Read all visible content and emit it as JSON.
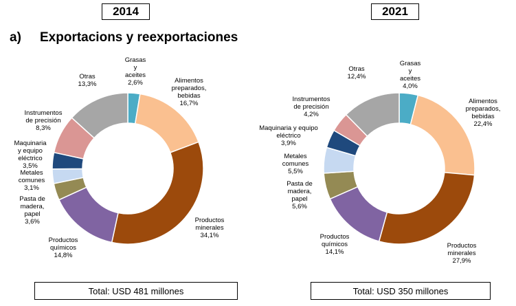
{
  "section_letter": "a)",
  "section_title": "Exportacions y reexportaciones",
  "chart_data": [
    {
      "type": "pie",
      "donut": true,
      "year": "2014",
      "total": "Total: USD 481 millones",
      "slices": [
        {
          "label": "Grasas y aceites",
          "value": 2.6,
          "value_text": "2,6%",
          "color": "#4BACC6"
        },
        {
          "label": "Alimentos preparados, bebidas",
          "value": 16.7,
          "value_text": "16,7%",
          "color": "#FAC090"
        },
        {
          "label": "Productos minerales",
          "value": 34.1,
          "value_text": "34,1%",
          "color": "#9C4A0C"
        },
        {
          "label": "Productos químicos",
          "value": 14.8,
          "value_text": "14,8%",
          "color": "#8064A2"
        },
        {
          "label": "Pasta de madera, papel",
          "value": 3.6,
          "value_text": "3,6%",
          "color": "#948A54"
        },
        {
          "label": "Metales comunes",
          "value": 3.1,
          "value_text": "3,1%",
          "color": "#C6D9F1"
        },
        {
          "label": "Maquinaria y equipo eléctrico",
          "value": 3.5,
          "value_text": "3,5%",
          "color": "#1F497D"
        },
        {
          "label": "Instrumentos de precisión",
          "value": 8.3,
          "value_text": "8,3%",
          "color": "#DA9694"
        },
        {
          "label": "Otras",
          "value": 13.3,
          "value_text": "13,3%",
          "color": "#A6A6A6"
        }
      ]
    },
    {
      "type": "pie",
      "donut": true,
      "year": "2021",
      "total": "Total: USD 350 millones",
      "slices": [
        {
          "label": "Grasas y aceites",
          "value": 4.0,
          "value_text": "4,0%",
          "color": "#4BACC6"
        },
        {
          "label": "Alimentos preparados, bebidas",
          "value": 22.4,
          "value_text": "22,4%",
          "color": "#FAC090"
        },
        {
          "label": "Productos minerales",
          "value": 27.9,
          "value_text": "27,9%",
          "color": "#9C4A0C"
        },
        {
          "label": "Productos químicos",
          "value": 14.1,
          "value_text": "14,1%",
          "color": "#8064A2"
        },
        {
          "label": "Pasta de madera, papel",
          "value": 5.6,
          "value_text": "5,6%",
          "color": "#948A54"
        },
        {
          "label": "Metales comunes",
          "value": 5.5,
          "value_text": "5,5%",
          "color": "#C6D9F1"
        },
        {
          "label": "Maquinaria y equipo eléctrico",
          "value": 3.9,
          "value_text": "3,9%",
          "color": "#1F497D"
        },
        {
          "label": "Instrumentos de precisión",
          "value": 4.2,
          "value_text": "4,2%",
          "color": "#DA9694"
        },
        {
          "label": "Otras",
          "value": 12.4,
          "value_text": "12,4%",
          "color": "#A6A6A6"
        }
      ]
    }
  ]
}
